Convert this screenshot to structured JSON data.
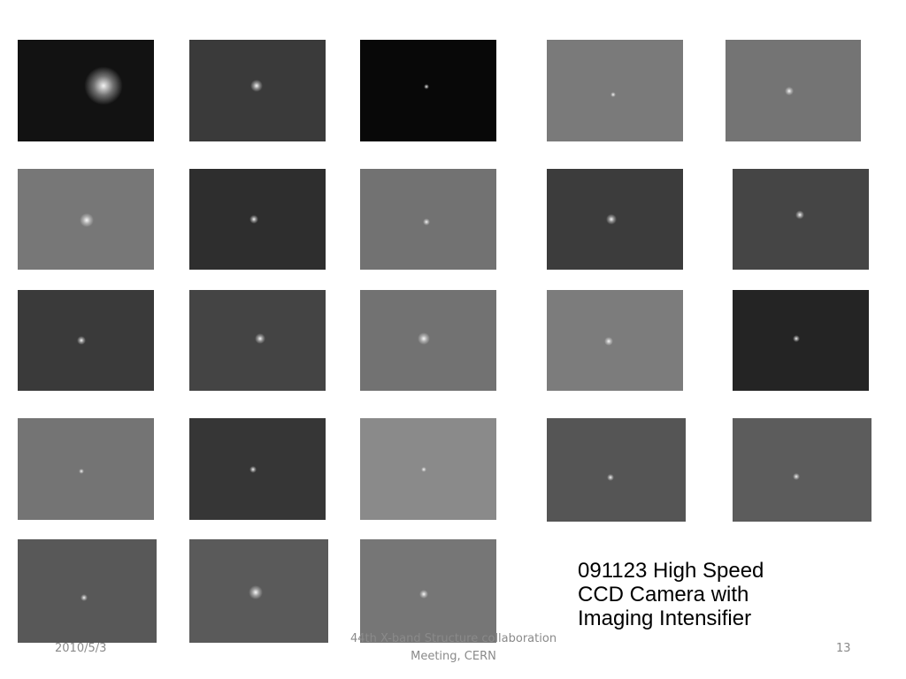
{
  "slide": {
    "caption_lines": [
      "091123 High Speed",
      "CCD Camera with",
      "Imaging Intensifier"
    ],
    "footer": {
      "date": "2010/5/3",
      "title_line1": "44th X-band Structure collaboration",
      "title_line2": "Meeting, CERN",
      "page_number": "13"
    },
    "image_count": 23
  }
}
